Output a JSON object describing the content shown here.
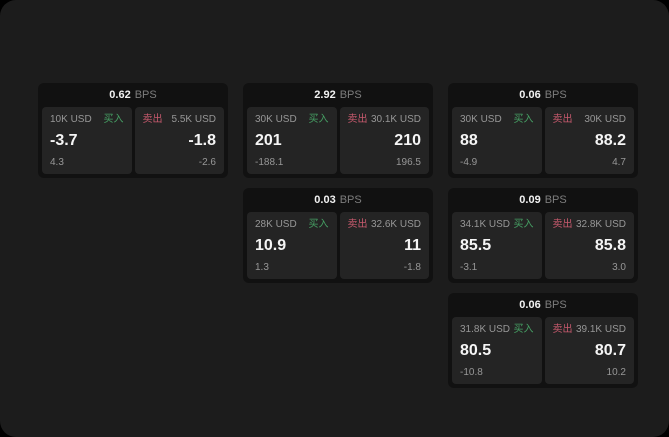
{
  "labels": {
    "bps": "BPS",
    "buy": "买入",
    "sell": "卖出"
  },
  "colors": {
    "surface": "#1c1c1c",
    "card_bg": "#111111",
    "panel_bg": "#242424",
    "buy_green": "#46a064",
    "sell_red": "#c85a6e",
    "text_primary": "#f5f5f5",
    "text_muted": "#979797"
  },
  "cards": [
    {
      "bps": "0.62",
      "buy": {
        "size": "10K USD",
        "price": "-3.7",
        "delta": "4.3"
      },
      "sell": {
        "size": "5.5K USD",
        "price": "-1.8",
        "delta": "-2.6"
      }
    },
    {
      "bps": "2.92",
      "buy": {
        "size": "30K USD",
        "price": "201",
        "delta": "-188.1"
      },
      "sell": {
        "size": "30.1K USD",
        "price": "210",
        "delta": "196.5"
      }
    },
    {
      "bps": "0.06",
      "buy": {
        "size": "30K USD",
        "price": "88",
        "delta": "-4.9"
      },
      "sell": {
        "size": "30K USD",
        "price": "88.2",
        "delta": "4.7"
      }
    },
    {
      "bps": "0.03",
      "buy": {
        "size": "28K USD",
        "price": "10.9",
        "delta": "1.3"
      },
      "sell": {
        "size": "32.6K USD",
        "price": "11",
        "delta": "-1.8"
      }
    },
    {
      "bps": "0.09",
      "buy": {
        "size": "34.1K USD",
        "price": "85.5",
        "delta": "-3.1"
      },
      "sell": {
        "size": "32.8K USD",
        "price": "85.8",
        "delta": "3.0"
      }
    },
    {
      "bps": "0.06",
      "buy": {
        "size": "31.8K USD",
        "price": "80.5",
        "delta": "-10.8"
      },
      "sell": {
        "size": "39.1K USD",
        "price": "80.7",
        "delta": "10.2"
      }
    }
  ]
}
